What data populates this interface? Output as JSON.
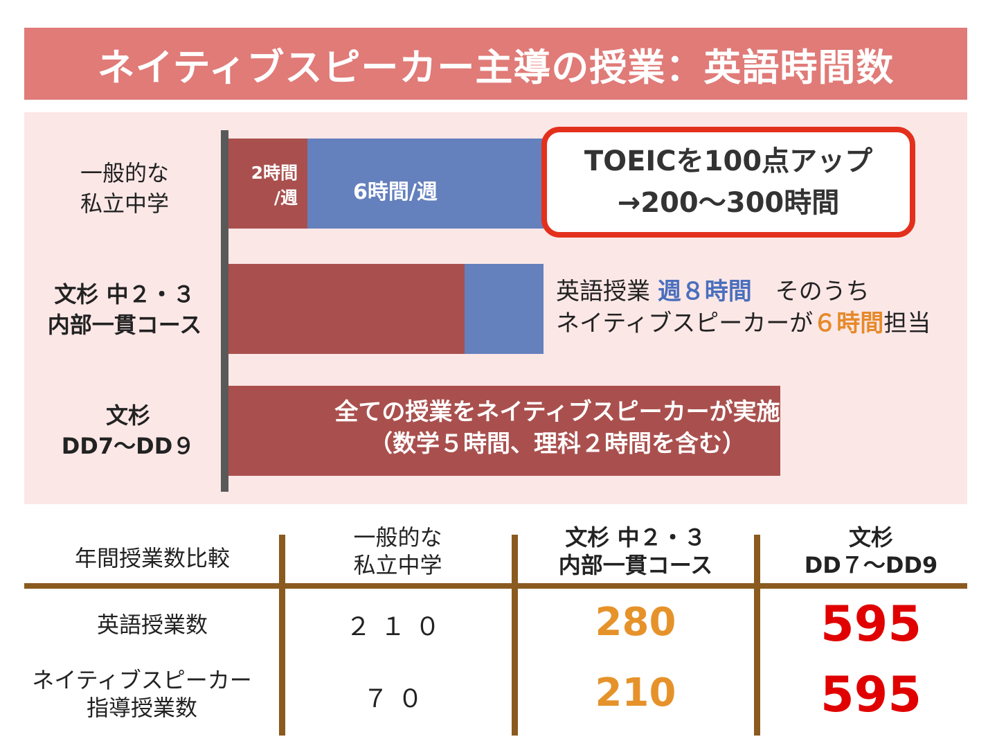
{
  "title": "ネイティブスピーカー主導の授業：英語時間数",
  "colors": {
    "title_bg": "#e07b78",
    "panel_bg": "#fbe7e6",
    "bar_native": "#a9504e",
    "bar_other": "#6480bd",
    "callout_border": "#e3301d",
    "table_lines": "#8a5a1f",
    "highlight_blue": "#4a6fbd",
    "highlight_orange": "#e6922a",
    "highlight_red": "#e00000"
  },
  "chart_data": {
    "type": "bar",
    "orientation": "horizontal",
    "stacked": true,
    "categories": [
      "一般的な私立中学",
      "文杉 中２・３ 内部一貫コース",
      "文杉 DD7〜DD９"
    ],
    "category_lines": [
      [
        "一般的な",
        "私立中学"
      ],
      [
        "文杉 中２・３",
        "内部一貫コース"
      ],
      [
        "文杉",
        "DD7〜DD９"
      ]
    ],
    "series": [
      {
        "color": "#a9504e",
        "values": [
          2,
          6,
          14
        ]
      },
      {
        "color": "#6480bd",
        "values": [
          6,
          2,
          0
        ]
      }
    ],
    "bar_labels": {
      "row1_red": [
        "2時間",
        "/週"
      ],
      "row1_blue": "6時間/週",
      "row3": [
        "全ての授業をネイティブスピーカーが実施",
        "（数学５時間、理科２時間を含む）"
      ]
    },
    "callout": [
      "TOEICを100点アップ",
      "→200〜300時間"
    ],
    "note": {
      "line1_prefix": "英語授業 ",
      "line1_highlight": "週８時間",
      "line1_suffix": "　そのうち",
      "line2_prefix": "ネイティブスピーカーが",
      "line2_highlight": "６時間",
      "line2_suffix": "担当"
    }
  },
  "table": {
    "header_label": "年間授業数比較",
    "columns": [
      [
        "一般的な",
        "私立中学"
      ],
      [
        "文杉 中２・３",
        "内部一貫コース"
      ],
      [
        "文杉",
        "DD７〜DD9"
      ]
    ],
    "rows": [
      {
        "label": [
          "英語授業数"
        ],
        "values": [
          "２１０",
          "280",
          "595"
        ]
      },
      {
        "label": [
          "ネイティブスピーカー",
          "指導授業数"
        ],
        "values": [
          "７０",
          "210",
          "595"
        ]
      }
    ]
  }
}
